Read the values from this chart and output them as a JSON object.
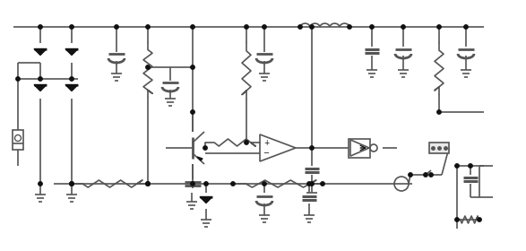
{
  "bg_color": "#ffffff",
  "line_color": "#555555",
  "fill_color": "#111111",
  "line_width": 1.2,
  "figsize": [
    5.87,
    2.8
  ],
  "dpi": 100
}
